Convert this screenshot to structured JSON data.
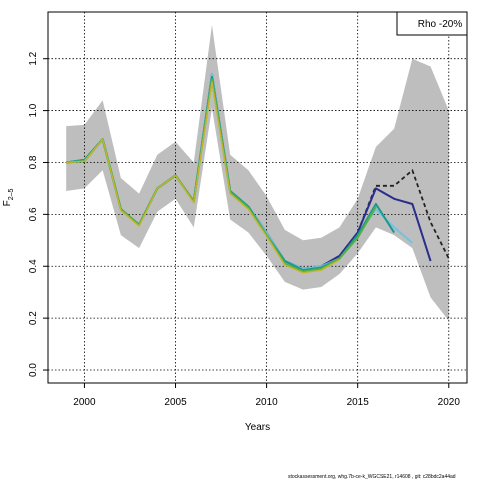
{
  "chart_data": {
    "type": "line",
    "xlabel": "Years",
    "ylabel": "F",
    "ylabel_subscript": "2–5",
    "xlim": [
      1998,
      2021
    ],
    "ylim": [
      -0.05,
      1.38
    ],
    "x_ticks": [
      2000,
      2005,
      2010,
      2015,
      2020
    ],
    "y_ticks": [
      0.0,
      0.2,
      0.4,
      0.6,
      0.8,
      1.0,
      1.2
    ],
    "grid": true,
    "legend": {
      "position": "top-right",
      "text": "Rho -20%"
    },
    "confidence_band": {
      "color": "#bebebe",
      "x": [
        1999,
        2000,
        2001,
        2002,
        2003,
        2004,
        2005,
        2006,
        2007,
        2008,
        2009,
        2010,
        2011,
        2012,
        2013,
        2014,
        2015,
        2016,
        2017,
        2018,
        2019,
        2020
      ],
      "lower": [
        0.69,
        0.7,
        0.77,
        0.52,
        0.47,
        0.61,
        0.66,
        0.55,
        1.01,
        0.58,
        0.53,
        0.44,
        0.34,
        0.31,
        0.32,
        0.37,
        0.45,
        0.55,
        0.52,
        0.47,
        0.28,
        0.19
      ],
      "upper": [
        0.94,
        0.945,
        1.04,
        0.74,
        0.68,
        0.83,
        0.88,
        0.8,
        1.33,
        0.83,
        0.77,
        0.67,
        0.54,
        0.5,
        0.51,
        0.55,
        0.66,
        0.86,
        0.93,
        1.2,
        1.17,
        1.0
      ]
    },
    "series": [
      {
        "color": "#222222",
        "dashed": true,
        "width": 1.8,
        "x": [
          1999,
          2000,
          2001,
          2002,
          2003,
          2004,
          2005,
          2006,
          2007,
          2008,
          2009,
          2010,
          2011,
          2012,
          2013,
          2014,
          2015,
          2016,
          2017,
          2018,
          2019,
          2020
        ],
        "y": [
          0.8,
          0.81,
          0.89,
          0.62,
          0.56,
          0.7,
          0.75,
          0.65,
          1.13,
          0.69,
          0.63,
          0.53,
          0.42,
          0.39,
          0.4,
          0.44,
          0.53,
          0.71,
          0.71,
          0.77,
          0.57,
          0.43
        ]
      },
      {
        "color": "#2b2c8e",
        "dashed": false,
        "width": 2,
        "x": [
          1999,
          2000,
          2001,
          2002,
          2003,
          2004,
          2005,
          2006,
          2007,
          2008,
          2009,
          2010,
          2011,
          2012,
          2013,
          2014,
          2015,
          2016,
          2017,
          2018,
          2019
        ],
        "y": [
          0.8,
          0.81,
          0.89,
          0.62,
          0.56,
          0.7,
          0.75,
          0.65,
          1.14,
          0.69,
          0.63,
          0.53,
          0.42,
          0.39,
          0.4,
          0.44,
          0.53,
          0.7,
          0.66,
          0.64,
          0.42
        ]
      },
      {
        "color": "#74c1e0",
        "dashed": false,
        "width": 2,
        "x": [
          1999,
          2000,
          2001,
          2002,
          2003,
          2004,
          2005,
          2006,
          2007,
          2008,
          2009,
          2010,
          2011,
          2012,
          2013,
          2014,
          2015,
          2016,
          2017,
          2018
        ],
        "y": [
          0.8,
          0.81,
          0.89,
          0.62,
          0.56,
          0.7,
          0.75,
          0.65,
          1.14,
          0.69,
          0.63,
          0.53,
          0.42,
          0.39,
          0.4,
          0.43,
          0.52,
          0.62,
          0.55,
          0.49
        ]
      },
      {
        "color": "#1a9a8a",
        "dashed": false,
        "width": 2,
        "x": [
          1999,
          2000,
          2001,
          2002,
          2003,
          2004,
          2005,
          2006,
          2007,
          2008,
          2009,
          2010,
          2011,
          2012,
          2013,
          2014,
          2015,
          2016,
          2017
        ],
        "y": [
          0.8,
          0.81,
          0.89,
          0.62,
          0.56,
          0.7,
          0.75,
          0.65,
          1.13,
          0.69,
          0.63,
          0.52,
          0.42,
          0.385,
          0.395,
          0.43,
          0.52,
          0.64,
          0.53
        ]
      },
      {
        "color": "#55b045",
        "dashed": false,
        "width": 2,
        "x": [
          1999,
          2000,
          2001,
          2002,
          2003,
          2004,
          2005,
          2006,
          2007,
          2008,
          2009,
          2010,
          2011,
          2012,
          2013,
          2014,
          2015,
          2016
        ],
        "y": [
          0.8,
          0.805,
          0.89,
          0.62,
          0.56,
          0.7,
          0.75,
          0.65,
          1.12,
          0.685,
          0.625,
          0.52,
          0.41,
          0.38,
          0.39,
          0.43,
          0.51,
          0.63
        ]
      },
      {
        "color": "#c4b62a",
        "dashed": false,
        "width": 1.4,
        "x": [
          1999,
          2000,
          2001,
          2002,
          2003,
          2004,
          2005,
          2006,
          2007,
          2008,
          2009,
          2010,
          2011,
          2012,
          2013,
          2014
        ],
        "y": [
          0.8,
          0.805,
          0.89,
          0.615,
          0.555,
          0.7,
          0.75,
          0.645,
          1.11,
          0.68,
          0.62,
          0.515,
          0.405,
          0.375,
          0.385,
          0.425
        ]
      }
    ]
  },
  "footer": "stockassessment.org, whg.7b-ce-k_WGCSE21, r14608 , git: c28bdc2a44ad"
}
